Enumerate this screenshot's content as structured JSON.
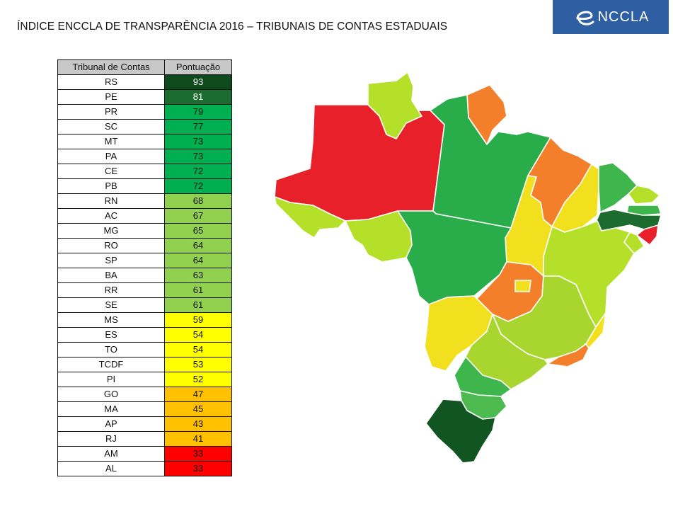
{
  "header": {
    "title": "ÍNDICE ENCCLA DE TRANSPARÊNCIA 2016 – TRIBUNAIS DE CONTAS ESTADUAIS",
    "logo_text": "NCCLA",
    "logo_letter": "e"
  },
  "table": {
    "columns": [
      "Tribunal de Contas",
      "Pontuação"
    ],
    "rows": [
      {
        "tribunal": "RS",
        "score": 93,
        "color": "#0e4a1c",
        "text_color": "#ffffff"
      },
      {
        "tribunal": "PE",
        "score": 81,
        "color": "#1a6d2e",
        "text_color": "#ffffff"
      },
      {
        "tribunal": "PR",
        "score": 79,
        "color": "#00b050",
        "text_color": "#111111"
      },
      {
        "tribunal": "SC",
        "score": 77,
        "color": "#00b050",
        "text_color": "#111111"
      },
      {
        "tribunal": "MT",
        "score": 73,
        "color": "#00b050",
        "text_color": "#111111"
      },
      {
        "tribunal": "PA",
        "score": 73,
        "color": "#00b050",
        "text_color": "#111111"
      },
      {
        "tribunal": "CE",
        "score": 72,
        "color": "#00b050",
        "text_color": "#111111"
      },
      {
        "tribunal": "PB",
        "score": 72,
        "color": "#00b050",
        "text_color": "#111111"
      },
      {
        "tribunal": "RN",
        "score": 68,
        "color": "#92d050",
        "text_color": "#111111"
      },
      {
        "tribunal": "AC",
        "score": 67,
        "color": "#92d050",
        "text_color": "#111111"
      },
      {
        "tribunal": "MG",
        "score": 65,
        "color": "#92d050",
        "text_color": "#111111"
      },
      {
        "tribunal": "RO",
        "score": 64,
        "color": "#92d050",
        "text_color": "#111111"
      },
      {
        "tribunal": "SP",
        "score": 64,
        "color": "#92d050",
        "text_color": "#111111"
      },
      {
        "tribunal": "BA",
        "score": 63,
        "color": "#92d050",
        "text_color": "#111111"
      },
      {
        "tribunal": "RR",
        "score": 61,
        "color": "#92d050",
        "text_color": "#111111"
      },
      {
        "tribunal": "SE",
        "score": 61,
        "color": "#92d050",
        "text_color": "#111111"
      },
      {
        "tribunal": "MS",
        "score": 59,
        "color": "#ffff00",
        "text_color": "#111111"
      },
      {
        "tribunal": "ES",
        "score": 54,
        "color": "#ffff00",
        "text_color": "#111111"
      },
      {
        "tribunal": "TO",
        "score": 54,
        "color": "#ffff00",
        "text_color": "#111111"
      },
      {
        "tribunal": "TCDF",
        "score": 53,
        "color": "#ffff00",
        "text_color": "#111111"
      },
      {
        "tribunal": "PI",
        "score": 52,
        "color": "#ffff00",
        "text_color": "#111111"
      },
      {
        "tribunal": "GO",
        "score": 47,
        "color": "#ffc000",
        "text_color": "#111111"
      },
      {
        "tribunal": "MA",
        "score": 45,
        "color": "#ffc000",
        "text_color": "#111111"
      },
      {
        "tribunal": "AP",
        "score": 43,
        "color": "#ffc000",
        "text_color": "#111111"
      },
      {
        "tribunal": "RJ",
        "score": 41,
        "color": "#ffc000",
        "text_color": "#111111"
      },
      {
        "tribunal": "AM",
        "score": 33,
        "color": "#ff0000",
        "text_color": "#111111"
      },
      {
        "tribunal": "AL",
        "score": 33,
        "color": "#ff0000",
        "text_color": "#111111"
      }
    ]
  },
  "map": {
    "states": [
      {
        "id": "AM",
        "color": "#e8202a"
      },
      {
        "id": "RR",
        "color": "#b5e02a"
      },
      {
        "id": "AP",
        "color": "#f47f2a"
      },
      {
        "id": "PA",
        "color": "#29ad4a"
      },
      {
        "id": "AC",
        "color": "#b5e02a"
      },
      {
        "id": "RO",
        "color": "#b5e02a"
      },
      {
        "id": "MT",
        "color": "#29ad4a"
      },
      {
        "id": "MA",
        "color": "#f47f2a"
      },
      {
        "id": "PI",
        "color": "#f2e01e"
      },
      {
        "id": "CE",
        "color": "#3fb64c"
      },
      {
        "id": "RN",
        "color": "#b5e02a"
      },
      {
        "id": "PB",
        "color": "#3fb64c"
      },
      {
        "id": "PE",
        "color": "#1c6b2f"
      },
      {
        "id": "AL",
        "color": "#e8202a"
      },
      {
        "id": "SE",
        "color": "#b5e02a"
      },
      {
        "id": "BA",
        "color": "#b5e02a"
      },
      {
        "id": "TO",
        "color": "#f2e01e"
      },
      {
        "id": "GO",
        "color": "#f47f2a"
      },
      {
        "id": "DF",
        "color": "#f2e01e"
      },
      {
        "id": "MS",
        "color": "#f2e01e"
      },
      {
        "id": "MG",
        "color": "#a8d62e"
      },
      {
        "id": "ES",
        "color": "#f2e01e"
      },
      {
        "id": "RJ",
        "color": "#f47f2a"
      },
      {
        "id": "SP",
        "color": "#a8d62e"
      },
      {
        "id": "PR",
        "color": "#3fb64c"
      },
      {
        "id": "SC",
        "color": "#4cba4f"
      },
      {
        "id": "RS",
        "color": "#115522"
      }
    ]
  }
}
